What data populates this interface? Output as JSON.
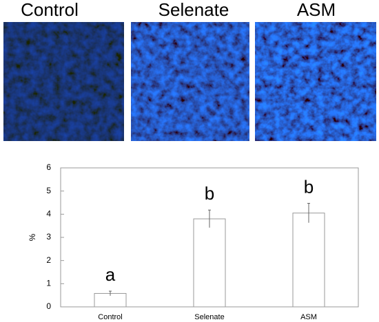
{
  "image_panels": [
    {
      "label": "Control"
    },
    {
      "label": "Selenate"
    },
    {
      "label": "ASM"
    }
  ],
  "chart_data": {
    "type": "bar",
    "y_label": "%",
    "categories": [
      "Control",
      "Selenate",
      "ASM"
    ],
    "values": [
      0.58,
      3.8,
      4.05
    ],
    "errors": [
      0.1,
      0.38,
      0.42
    ],
    "annotations": [
      "a",
      "b",
      "b"
    ],
    "color": "#ffffff",
    "edge_color": "#999999",
    "ylim": [
      0,
      6
    ],
    "yticks": [
      0,
      1,
      2,
      3,
      4,
      5,
      6
    ],
    "grid": false
  }
}
